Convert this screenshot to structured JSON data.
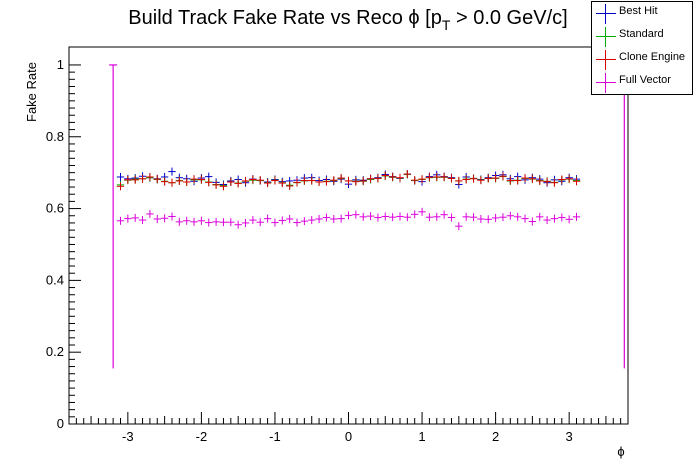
{
  "chart_data": {
    "type": "scatter",
    "title": "Build Track Fake Rate vs Reco ϕ [p",
    "title_sub": "T",
    "title_rest": " > 0.0 GeV/c]",
    "xlabel": "ϕ",
    "ylabel": "Fake Rate",
    "xlim": [
      -3.8,
      3.8
    ],
    "ylim": [
      0,
      1.05
    ],
    "xticks": [
      "-3",
      "-2",
      "-1",
      "0",
      "1",
      "2",
      "3"
    ],
    "yticks": [
      "0",
      "0.2",
      "0.4",
      "0.6",
      "0.8",
      "1"
    ],
    "x": [
      -3.1,
      -3.0,
      -2.9,
      -2.8,
      -2.7,
      -2.6,
      -2.5,
      -2.4,
      -2.3,
      -2.2,
      -2.1,
      -2.0,
      -1.9,
      -1.8,
      -1.7,
      -1.6,
      -1.5,
      -1.4,
      -1.3,
      -1.2,
      -1.1,
      -1.0,
      -0.9,
      -0.8,
      -0.7,
      -0.6,
      -0.5,
      -0.4,
      -0.3,
      -0.2,
      -0.1,
      0.0,
      0.1,
      0.2,
      0.3,
      0.4,
      0.5,
      0.6,
      0.7,
      0.8,
      0.9,
      1.0,
      1.1,
      1.2,
      1.3,
      1.4,
      1.5,
      1.6,
      1.7,
      1.8,
      1.9,
      2.0,
      2.1,
      2.2,
      2.3,
      2.4,
      2.5,
      2.6,
      2.7,
      2.8,
      2.9,
      3.0,
      3.1
    ],
    "series": [
      {
        "name": "Best Hit",
        "color": "#0000cc",
        "values": [
          0.688,
          0.683,
          0.685,
          0.69,
          0.686,
          0.683,
          0.688,
          0.703,
          0.686,
          0.683,
          0.676,
          0.685,
          0.689,
          0.673,
          0.667,
          0.677,
          0.681,
          0.672,
          0.682,
          0.678,
          0.674,
          0.681,
          0.675,
          0.677,
          0.679,
          0.685,
          0.686,
          0.678,
          0.681,
          0.676,
          0.682,
          0.668,
          0.68,
          0.679,
          0.683,
          0.686,
          0.695,
          0.689,
          0.684,
          0.696,
          0.678,
          0.675,
          0.689,
          0.694,
          0.689,
          0.686,
          0.667,
          0.688,
          0.684,
          0.681,
          0.686,
          0.692,
          0.694,
          0.683,
          0.689,
          0.68,
          0.686,
          0.682,
          0.672,
          0.68,
          0.676,
          0.686,
          0.682
        ]
      },
      {
        "name": "Standard",
        "color": "#00aa00",
        "values": [
          0.666,
          0.679,
          0.682,
          0.683,
          0.686,
          0.681,
          0.676,
          0.672,
          0.678,
          0.674,
          0.68,
          0.68,
          0.674,
          0.667,
          0.664,
          0.674,
          0.671,
          0.676,
          0.679,
          0.678,
          0.672,
          0.679,
          0.672,
          0.665,
          0.672,
          0.677,
          0.678,
          0.674,
          0.676,
          0.678,
          0.684,
          0.677,
          0.676,
          0.676,
          0.681,
          0.684,
          0.691,
          0.687,
          0.685,
          0.695,
          0.678,
          0.681,
          0.686,
          0.687,
          0.687,
          0.684,
          0.677,
          0.682,
          0.684,
          0.68,
          0.684,
          0.684,
          0.689,
          0.677,
          0.679,
          0.684,
          0.682,
          0.678,
          0.676,
          0.673,
          0.68,
          0.682,
          0.678
        ]
      },
      {
        "name": "Clone Engine",
        "color": "#dd0000",
        "values": [
          0.662,
          0.68,
          0.68,
          0.683,
          0.688,
          0.682,
          0.675,
          0.672,
          0.677,
          0.674,
          0.682,
          0.681,
          0.673,
          0.666,
          0.662,
          0.674,
          0.67,
          0.677,
          0.681,
          0.679,
          0.671,
          0.678,
          0.671,
          0.663,
          0.673,
          0.678,
          0.678,
          0.674,
          0.675,
          0.679,
          0.685,
          0.677,
          0.675,
          0.677,
          0.683,
          0.684,
          0.692,
          0.688,
          0.686,
          0.696,
          0.679,
          0.682,
          0.687,
          0.688,
          0.688,
          0.684,
          0.677,
          0.681,
          0.683,
          0.679,
          0.684,
          0.685,
          0.69,
          0.678,
          0.678,
          0.685,
          0.683,
          0.677,
          0.675,
          0.672,
          0.681,
          0.683,
          0.676
        ]
      },
      {
        "name": "Full Vector",
        "color": "#dd00dd",
        "values": [
          0.566,
          0.572,
          0.574,
          0.568,
          0.585,
          0.571,
          0.573,
          0.578,
          0.563,
          0.566,
          0.563,
          0.566,
          0.561,
          0.563,
          0.562,
          0.562,
          0.555,
          0.56,
          0.568,
          0.562,
          0.572,
          0.561,
          0.567,
          0.571,
          0.561,
          0.565,
          0.568,
          0.571,
          0.575,
          0.571,
          0.572,
          0.581,
          0.583,
          0.577,
          0.579,
          0.575,
          0.578,
          0.576,
          0.578,
          0.576,
          0.584,
          0.591,
          0.576,
          0.577,
          0.583,
          0.575,
          0.551,
          0.577,
          0.576,
          0.571,
          0.57,
          0.574,
          0.576,
          0.58,
          0.577,
          0.572,
          0.564,
          0.577,
          0.568,
          0.572,
          0.575,
          0.57,
          0.577
        ]
      }
    ],
    "edge_bars": [
      {
        "x": -3.2,
        "low": 0.155,
        "high": 1.0,
        "color": "#dd00dd"
      },
      {
        "x": 3.75,
        "low": 0.155,
        "high": 1.0,
        "color": "#dd00dd"
      }
    ],
    "grid": false,
    "legend_position": "top-right"
  }
}
